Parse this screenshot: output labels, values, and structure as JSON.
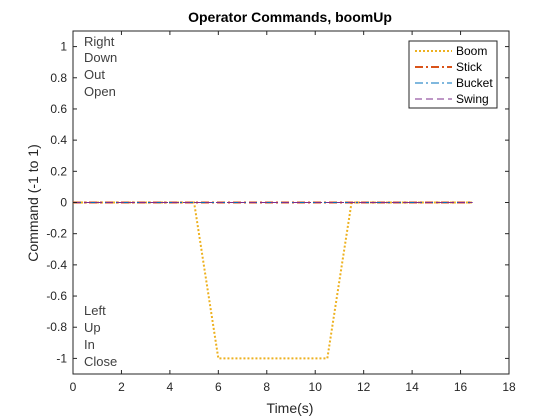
{
  "chart_data": {
    "type": "line",
    "title": "Operator Commands, boomUp",
    "xlabel": "Time(s)",
    "ylabel": "Command (-1 to 1)",
    "xlim": [
      0,
      18
    ],
    "ylim": [
      -1.1,
      1.1
    ],
    "xticks": [
      0,
      2,
      4,
      6,
      8,
      10,
      12,
      14,
      16,
      18
    ],
    "yticks": [
      1,
      0.8,
      0.6,
      0.4,
      0.2,
      0,
      -0.2,
      -0.4,
      -0.6,
      -0.8,
      -1
    ],
    "ytick_labels": [
      "1",
      "0.8",
      "0.6",
      "0.4",
      "0.2",
      "0",
      "-0.2",
      "-0.4",
      "-0.6",
      "-0.8",
      "-1"
    ],
    "grid": false,
    "legend_position": "top-right",
    "annotations_top": [
      "Right",
      "Down",
      "Out",
      "Open"
    ],
    "annotations_bottom": [
      "Left",
      "Up",
      "In",
      "Close"
    ],
    "series": [
      {
        "name": "Boom",
        "color": "#EDB120",
        "style": "dotted",
        "x": [
          0,
          5,
          6,
          10.5,
          11.5,
          16.5
        ],
        "y": [
          0,
          0,
          -1,
          -1,
          0,
          0
        ]
      },
      {
        "name": "Stick",
        "color": "#D95319",
        "style": "dashdot-thick",
        "x": [
          0,
          16.5
        ],
        "y": [
          0,
          0
        ]
      },
      {
        "name": "Bucket",
        "color": "#0072BD",
        "style": "dashdot",
        "x": [
          0,
          16.5
        ],
        "y": [
          0,
          0
        ]
      },
      {
        "name": "Swing",
        "color": "#7E2F8E",
        "style": "dashed",
        "x": [
          0,
          16.5
        ],
        "y": [
          0,
          0
        ]
      }
    ]
  }
}
